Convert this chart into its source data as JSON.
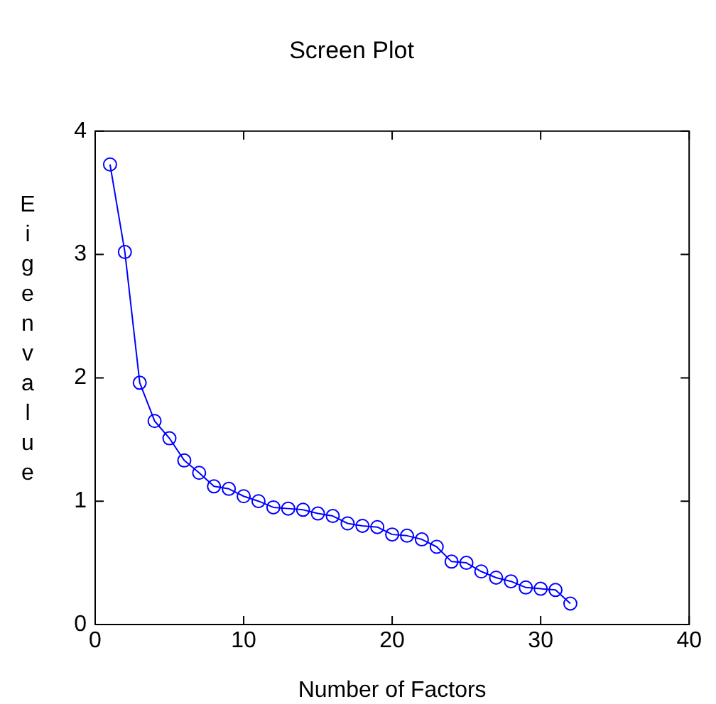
{
  "chart_data": {
    "type": "line",
    "title": "Screen Plot",
    "xlabel": "Number of Factors",
    "ylabel": "Eigenvalue",
    "x": [
      1,
      2,
      3,
      4,
      5,
      6,
      7,
      8,
      9,
      10,
      11,
      12,
      13,
      14,
      15,
      16,
      17,
      18,
      19,
      20,
      21,
      22,
      23,
      24,
      25,
      26,
      27,
      28,
      29,
      30,
      31,
      32
    ],
    "series": [
      {
        "color": "#0000ff",
        "values": [
          3.73,
          3.02,
          1.96,
          1.65,
          1.51,
          1.33,
          1.23,
          1.12,
          1.1,
          1.04,
          1.0,
          0.95,
          0.94,
          0.93,
          0.9,
          0.88,
          0.82,
          0.8,
          0.79,
          0.73,
          0.72,
          0.69,
          0.63,
          0.51,
          0.5,
          0.43,
          0.38,
          0.35,
          0.3,
          0.29,
          0.28,
          0.17
        ]
      }
    ],
    "xlim": [
      0,
      40
    ],
    "xticks": [
      0,
      10,
      20,
      30,
      40
    ],
    "ylim": [
      0,
      4
    ],
    "yticks": [
      0,
      1,
      2,
      3,
      4
    ],
    "grid": false,
    "legend": false,
    "marker": "circle",
    "line_style": "solid"
  }
}
